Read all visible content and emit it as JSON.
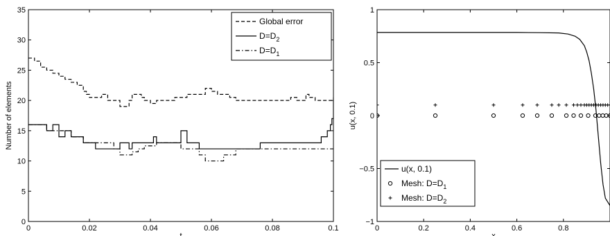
{
  "chart_data": [
    {
      "type": "line",
      "title": "",
      "xlabel": "t",
      "ylabel": "Number of elements",
      "xlim": [
        0,
        0.1
      ],
      "ylim": [
        0,
        35
      ],
      "xticks": [
        0,
        0.02,
        0.04,
        0.06,
        0.08,
        0.1
      ],
      "xtick_labels": [
        "0",
        "0.02",
        "0.04",
        "0.06",
        "0.08",
        "0.1"
      ],
      "yticks": [
        0,
        5,
        10,
        15,
        20,
        25,
        30,
        35
      ],
      "ytick_labels": [
        "0",
        "5",
        "10",
        "15",
        "20",
        "25",
        "30",
        "35"
      ],
      "grid": false,
      "legend_position": "top-right",
      "series": [
        {
          "name": "Global error",
          "style": "dashed",
          "x": [
            0,
            0.001,
            0.002,
            0.004,
            0.006,
            0.008,
            0.01,
            0.012,
            0.014,
            0.016,
            0.018,
            0.019,
            0.02,
            0.022,
            0.024,
            0.026,
            0.028,
            0.03,
            0.032,
            0.033,
            0.034,
            0.036,
            0.037,
            0.038,
            0.04,
            0.042,
            0.044,
            0.046,
            0.048,
            0.05,
            0.052,
            0.054,
            0.056,
            0.058,
            0.06,
            0.062,
            0.064,
            0.066,
            0.068,
            0.07,
            0.072,
            0.074,
            0.076,
            0.078,
            0.08,
            0.082,
            0.084,
            0.086,
            0.088,
            0.09,
            0.091,
            0.092,
            0.094,
            0.096,
            0.098,
            0.0995,
            0.1
          ],
          "y": [
            27,
            27,
            26.5,
            25.5,
            25,
            24.5,
            24,
            23.5,
            23,
            22.5,
            21.5,
            21,
            20.5,
            20.5,
            21,
            20,
            20,
            19,
            19,
            20,
            21,
            21,
            20.5,
            20,
            19.5,
            20,
            20,
            20,
            20.5,
            20.5,
            21,
            21,
            21,
            22,
            21.5,
            21,
            21,
            20.5,
            20,
            20,
            20,
            20,
            20,
            20,
            20,
            20,
            20,
            20.5,
            20,
            20,
            21,
            20.5,
            20,
            20,
            20,
            20,
            20.5
          ]
        },
        {
          "name": "D=D_2",
          "style": "solid",
          "x": [
            0,
            0.005,
            0.006,
            0.008,
            0.01,
            0.012,
            0.014,
            0.016,
            0.018,
            0.02,
            0.022,
            0.024,
            0.026,
            0.028,
            0.03,
            0.032,
            0.033,
            0.034,
            0.036,
            0.038,
            0.04,
            0.041,
            0.042,
            0.043,
            0.044,
            0.046,
            0.048,
            0.05,
            0.052,
            0.054,
            0.056,
            0.058,
            0.06,
            0.062,
            0.064,
            0.066,
            0.068,
            0.07,
            0.072,
            0.074,
            0.076,
            0.078,
            0.08,
            0.082,
            0.084,
            0.086,
            0.088,
            0.09,
            0.092,
            0.094,
            0.096,
            0.098,
            0.099,
            0.0995,
            0.1
          ],
          "y": [
            16,
            16,
            15,
            16,
            14,
            15,
            14,
            14,
            13,
            13,
            12,
            12,
            12,
            12,
            13,
            13,
            12,
            13,
            13,
            13,
            13,
            14,
            13,
            13,
            13,
            13,
            13,
            15,
            13,
            13,
            12,
            12,
            12,
            12,
            12,
            12,
            12,
            12,
            12,
            12,
            13,
            13,
            13,
            13,
            13,
            13,
            13,
            13,
            13,
            13,
            14,
            15,
            16,
            17,
            20
          ]
        },
        {
          "name": "D=D_1",
          "style": "dash-dot",
          "x": [
            0,
            0.005,
            0.006,
            0.008,
            0.01,
            0.012,
            0.014,
            0.016,
            0.018,
            0.02,
            0.022,
            0.024,
            0.026,
            0.028,
            0.03,
            0.032,
            0.034,
            0.036,
            0.038,
            0.04,
            0.042,
            0.044,
            0.046,
            0.048,
            0.05,
            0.052,
            0.054,
            0.056,
            0.058,
            0.06,
            0.062,
            0.064,
            0.066,
            0.068,
            0.07,
            0.072,
            0.074,
            0.076,
            0.078,
            0.08,
            0.082,
            0.084,
            0.086,
            0.088,
            0.09,
            0.092,
            0.094,
            0.096,
            0.098,
            0.1
          ],
          "y": [
            16,
            16,
            15,
            15,
            15,
            15,
            14,
            14,
            13,
            13,
            13,
            13,
            13,
            12,
            11,
            11,
            11.5,
            12,
            12.5,
            12.5,
            13,
            13,
            13,
            13,
            12,
            12,
            12,
            11,
            10,
            10,
            10,
            11,
            11,
            12,
            12,
            12,
            12,
            12,
            12,
            12,
            12,
            12,
            12,
            12,
            12,
            12,
            12,
            12,
            12,
            12
          ]
        }
      ],
      "legend": [
        {
          "label": "Global error",
          "style": "dashed"
        },
        {
          "label": "D=D",
          "sub": "2",
          "style": "solid"
        },
        {
          "label": "D=D",
          "sub": "1",
          "style": "dash-dot"
        }
      ]
    },
    {
      "type": "line",
      "title": "",
      "xlabel": "x",
      "ylabel": "u(x, 0.1)",
      "xlim": [
        0,
        1
      ],
      "ylim": [
        -1,
        1
      ],
      "xticks": [
        0,
        0.2,
        0.4,
        0.6,
        0.8
      ],
      "xtick_labels": [
        "0",
        "0.2",
        "0.4",
        "0.6",
        "0.8"
      ],
      "yticks": [
        -1,
        -0.5,
        0,
        0.5,
        1
      ],
      "ytick_labels": [
        "−1",
        "−0.5",
        "0",
        "0.5",
        "1"
      ],
      "grid": false,
      "legend_position": "bottom-left",
      "series": [
        {
          "name": "u(x, 0.1)",
          "style": "solid",
          "x": [
            0,
            0.1,
            0.2,
            0.3,
            0.4,
            0.5,
            0.6,
            0.7,
            0.78,
            0.82,
            0.85,
            0.87,
            0.89,
            0.9,
            0.91,
            0.92,
            0.93,
            0.94,
            0.95,
            0.96,
            0.97,
            0.98,
            1.0
          ],
          "y": [
            0.785,
            0.785,
            0.785,
            0.785,
            0.785,
            0.785,
            0.785,
            0.783,
            0.78,
            0.77,
            0.75,
            0.72,
            0.66,
            0.6,
            0.52,
            0.4,
            0.25,
            0.05,
            -0.2,
            -0.45,
            -0.65,
            -0.78,
            -0.85
          ]
        },
        {
          "name": "Mesh: D=D_1",
          "style": "circle-markers",
          "x": [
            0,
            0.25,
            0.5,
            0.625,
            0.6875,
            0.75,
            0.8125,
            0.84375,
            0.875,
            0.90625,
            0.9375,
            0.953,
            0.969,
            0.984,
            1.0
          ],
          "y": [
            0,
            0,
            0,
            0,
            0,
            0,
            0,
            0,
            0,
            0,
            0,
            0,
            0,
            0,
            0
          ]
        },
        {
          "name": "Mesh: D=D_2",
          "style": "plus-markers",
          "x": [
            0,
            0.25,
            0.5,
            0.625,
            0.6875,
            0.75,
            0.78,
            0.8125,
            0.84375,
            0.86,
            0.875,
            0.89,
            0.9,
            0.91,
            0.92,
            0.93,
            0.94,
            0.95,
            0.96,
            0.97,
            0.98,
            0.99,
            1.0
          ],
          "y": [
            0.1,
            0.1,
            0.1,
            0.1,
            0.1,
            0.1,
            0.1,
            0.1,
            0.1,
            0.1,
            0.1,
            0.1,
            0.1,
            0.1,
            0.1,
            0.1,
            0.1,
            0.1,
            0.1,
            0.1,
            0.1,
            0.1,
            0.1
          ]
        }
      ],
      "legend": [
        {
          "label": "u(x, 0.1)",
          "style": "solid"
        },
        {
          "label": "Mesh:  D=D",
          "sub": "1",
          "style": "circle-markers"
        },
        {
          "label": "Mesh:  D=D",
          "sub": "2",
          "style": "plus-markers"
        }
      ]
    }
  ]
}
